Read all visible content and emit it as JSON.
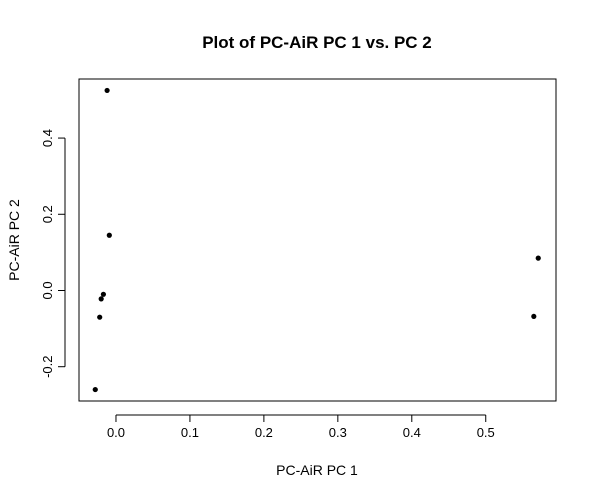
{
  "chart_data": {
    "type": "scatter",
    "title": "Plot of PC-AiR PC 1 vs. PC 2",
    "xlabel": "PC-AiR PC 1",
    "ylabel": "PC-AiR PC 2",
    "xlim": [
      -0.05,
      0.595
    ],
    "ylim": [
      -0.29,
      0.555
    ],
    "xticks": [
      0.0,
      0.1,
      0.2,
      0.3,
      0.4,
      0.5
    ],
    "xtick_labels": [
      "0.0",
      "0.1",
      "0.2",
      "0.3",
      "0.4",
      "0.5"
    ],
    "yticks": [
      -0.2,
      0.0,
      0.2,
      0.4
    ],
    "ytick_labels": [
      "-0.2",
      "0.0",
      "0.2",
      "0.4"
    ],
    "grid": false,
    "point_color": "#000000",
    "points": [
      {
        "x": -0.012,
        "y": 0.525
      },
      {
        "x": -0.009,
        "y": 0.145
      },
      {
        "x": -0.017,
        "y": -0.01
      },
      {
        "x": -0.02,
        "y": -0.022
      },
      {
        "x": -0.022,
        "y": -0.07
      },
      {
        "x": -0.028,
        "y": -0.26
      },
      {
        "x": 0.571,
        "y": 0.085
      },
      {
        "x": 0.565,
        "y": -0.068
      }
    ]
  }
}
